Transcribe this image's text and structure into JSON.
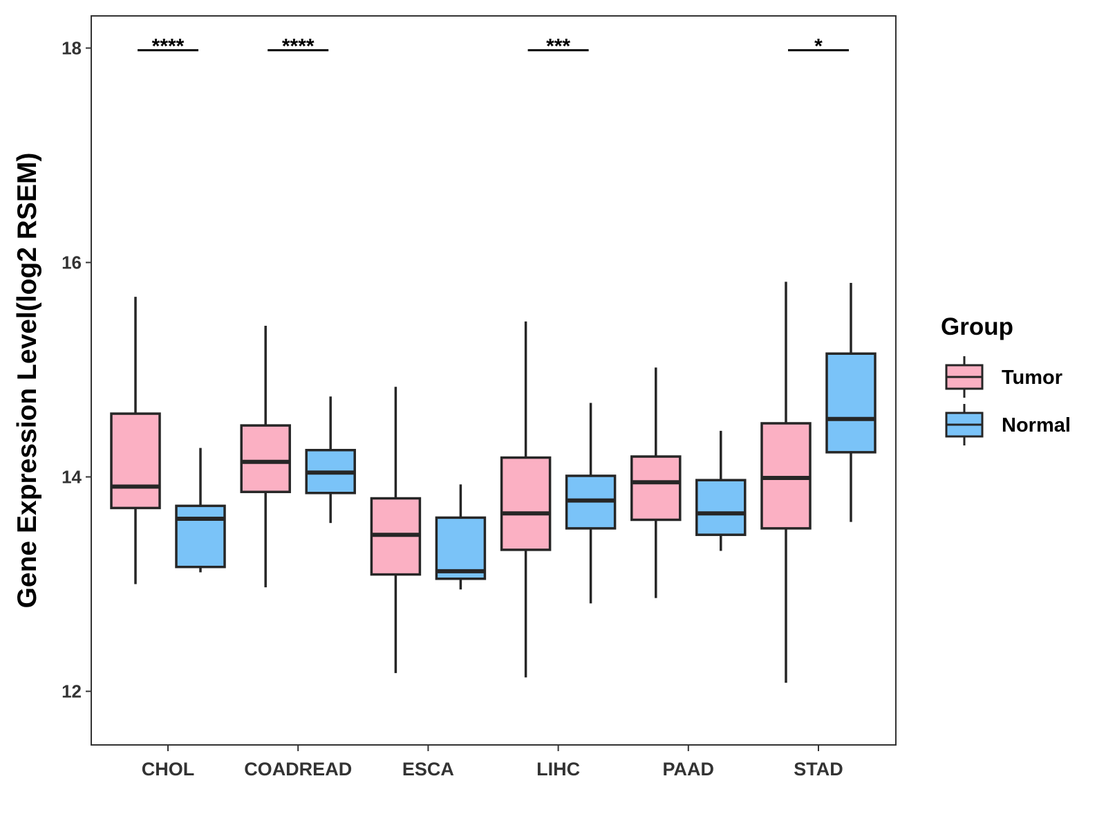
{
  "chart_data": {
    "type": "boxplot",
    "ylabel": "Gene Expression Level(log2 RSEM)",
    "xlabel": "",
    "ylim": [
      11.5,
      18.3
    ],
    "yticks": [
      12,
      14,
      16,
      18
    ],
    "categories": [
      "CHOL",
      "COADREAD",
      "ESCA",
      "LIHC",
      "PAAD",
      "STAD"
    ],
    "series": [
      {
        "name": "Tumor",
        "color": "#FBB0C3",
        "boxes": [
          {
            "whisker_low": 13.0,
            "q1": 13.71,
            "median": 13.91,
            "q3": 14.59,
            "whisker_high": 15.68
          },
          {
            "whisker_low": 12.97,
            "q1": 13.86,
            "median": 14.14,
            "q3": 14.48,
            "whisker_high": 15.41
          },
          {
            "whisker_low": 12.17,
            "q1": 13.09,
            "median": 13.46,
            "q3": 13.8,
            "whisker_high": 14.84
          },
          {
            "whisker_low": 12.13,
            "q1": 13.32,
            "median": 13.66,
            "q3": 14.18,
            "whisker_high": 15.45
          },
          {
            "whisker_low": 12.87,
            "q1": 13.6,
            "median": 13.95,
            "q3": 14.19,
            "whisker_high": 15.02
          },
          {
            "whisker_low": 12.08,
            "q1": 13.52,
            "median": 13.99,
            "q3": 14.5,
            "whisker_high": 15.82
          }
        ]
      },
      {
        "name": "Normal",
        "color": "#7AC3F8",
        "boxes": [
          {
            "whisker_low": 13.11,
            "q1": 13.16,
            "median": 13.61,
            "q3": 13.73,
            "whisker_high": 14.27
          },
          {
            "whisker_low": 13.57,
            "q1": 13.85,
            "median": 14.04,
            "q3": 14.25,
            "whisker_high": 14.75
          },
          {
            "whisker_low": 12.95,
            "q1": 13.05,
            "median": 13.12,
            "q3": 13.62,
            "whisker_high": 13.93
          },
          {
            "whisker_low": 12.82,
            "q1": 13.52,
            "median": 13.78,
            "q3": 14.01,
            "whisker_high": 14.69
          },
          {
            "whisker_low": 13.31,
            "q1": 13.46,
            "median": 13.66,
            "q3": 13.97,
            "whisker_high": 14.43
          },
          {
            "whisker_low": 13.58,
            "q1": 14.23,
            "median": 14.54,
            "q3": 15.15,
            "whisker_high": 15.81
          }
        ]
      }
    ],
    "significance": [
      {
        "category": "CHOL",
        "label": "****"
      },
      {
        "category": "COADREAD",
        "label": "****"
      },
      {
        "category": "LIHC",
        "label": "***"
      },
      {
        "category": "STAD",
        "label": "*"
      }
    ],
    "significance_y": 17.98,
    "legend": {
      "title": "Group",
      "position": "right",
      "items": [
        "Tumor",
        "Normal"
      ]
    }
  }
}
